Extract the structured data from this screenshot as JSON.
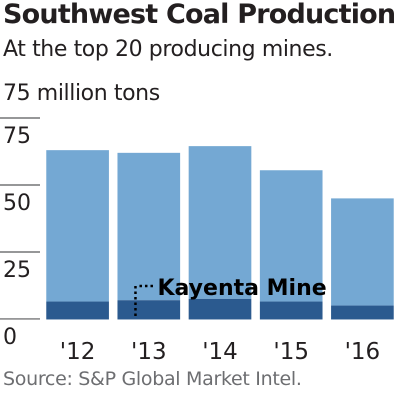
{
  "title": "Southwest Coal Production",
  "subtitle": "At the top 20 producing mines.",
  "unit_note": "75 million tons",
  "source": "Source: S&P Global Market Intel.",
  "colors": {
    "total": "#74a8d3",
    "kayenta": "#2b5a8f",
    "axis": "#231f20"
  },
  "chart_data": {
    "type": "bar",
    "stacked": true,
    "categories": [
      "'12",
      "'13",
      "'14",
      "'15",
      "'16"
    ],
    "series": [
      {
        "name": "Kayenta Mine",
        "values": [
          6.5,
          7,
          7.5,
          6.5,
          5
        ]
      },
      {
        "name": "",
        "values": [
          56.5,
          55,
          57,
          49,
          40
        ]
      }
    ],
    "totals": [
      63,
      62,
      64.5,
      55.5,
      45
    ],
    "yticks": [
      0,
      25,
      50,
      75
    ],
    "ylim": [
      -3,
      75
    ],
    "annotation": "Kayenta Mine",
    "grid": false
  }
}
